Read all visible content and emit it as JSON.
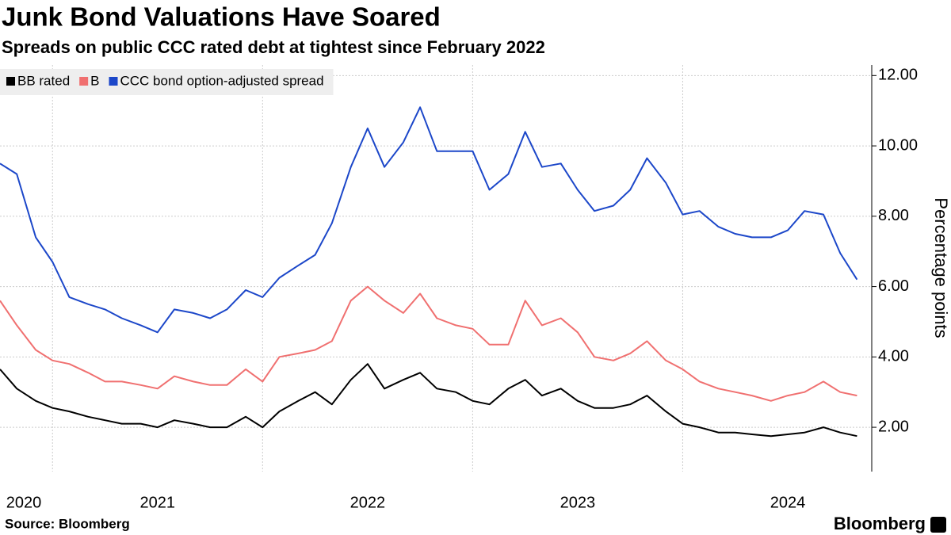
{
  "chart_data": {
    "type": "line",
    "title": "Junk Bond Valuations Have Soared",
    "subtitle": "Spreads on public CCC rated debt at tightest since February 2022",
    "y_label": "Percentage points",
    "source": "Source: Bloomberg",
    "logo": "Bloomberg",
    "legend": "upper left",
    "grid": true,
    "x": [
      2020.75,
      2020.83,
      2020.92,
      2021.0,
      2021.08,
      2021.17,
      2021.25,
      2021.33,
      2021.42,
      2021.5,
      2021.58,
      2021.67,
      2021.75,
      2021.83,
      2021.92,
      2022.0,
      2022.08,
      2022.17,
      2022.25,
      2022.33,
      2022.42,
      2022.5,
      2022.58,
      2022.67,
      2022.75,
      2022.83,
      2022.92,
      2023.0,
      2023.08,
      2023.17,
      2023.25,
      2023.33,
      2023.42,
      2023.5,
      2023.58,
      2023.67,
      2023.75,
      2023.83,
      2023.92,
      2024.0,
      2024.08,
      2024.17,
      2024.25,
      2024.33,
      2024.42,
      2024.5,
      2024.58,
      2024.67,
      2024.75,
      2024.83
    ],
    "xlim": [
      2020.75,
      2024.9
    ],
    "xticks": [
      2020,
      2021,
      2022,
      2023,
      2024
    ],
    "ylim": [
      0.74,
      12.3
    ],
    "yticks": [
      {
        "value": 2,
        "label": "2.00"
      },
      {
        "value": 4,
        "label": "4.00"
      },
      {
        "value": 6,
        "label": "6.00"
      },
      {
        "value": 8,
        "label": "8.00"
      },
      {
        "value": 10,
        "label": "10.00"
      },
      {
        "value": 12,
        "label": "12.00"
      }
    ],
    "series": [
      {
        "name": "BB rated",
        "color": "#000000",
        "values": [
          3.65,
          3.1,
          2.75,
          2.55,
          2.45,
          2.3,
          2.2,
          2.1,
          2.1,
          2.0,
          2.2,
          2.1,
          2.0,
          2.0,
          2.3,
          2.0,
          2.45,
          2.75,
          3.0,
          2.65,
          3.35,
          3.8,
          3.1,
          3.35,
          3.55,
          3.1,
          3.0,
          2.75,
          2.65,
          3.1,
          3.35,
          2.9,
          3.1,
          2.75,
          2.55,
          2.55,
          2.65,
          2.9,
          2.45,
          2.1,
          2.0,
          1.85,
          1.85,
          1.8,
          1.75,
          1.8,
          1.85,
          2.0,
          1.85,
          1.75
        ]
      },
      {
        "name": "B",
        "color": "#f07070",
        "values": [
          5.6,
          4.9,
          4.2,
          3.9,
          3.8,
          3.55,
          3.3,
          3.3,
          3.2,
          3.1,
          3.45,
          3.3,
          3.2,
          3.2,
          3.65,
          3.3,
          4.0,
          4.1,
          4.2,
          4.45,
          5.6,
          6.0,
          5.6,
          5.25,
          5.8,
          5.1,
          4.9,
          4.8,
          4.35,
          4.35,
          5.6,
          4.9,
          5.1,
          4.7,
          4.0,
          3.9,
          4.1,
          4.45,
          3.9,
          3.65,
          3.3,
          3.1,
          3.0,
          2.9,
          2.75,
          2.9,
          3.0,
          3.3,
          3.0,
          2.9
        ]
      },
      {
        "name": "CCC bond option-adjusted spread",
        "color": "#1c47c9",
        "values": [
          9.5,
          9.2,
          7.4,
          6.7,
          5.7,
          5.5,
          5.35,
          5.1,
          4.9,
          4.7,
          5.35,
          5.25,
          5.1,
          5.35,
          5.9,
          5.7,
          6.25,
          6.6,
          6.9,
          7.8,
          9.4,
          10.5,
          9.4,
          10.1,
          11.1,
          9.85,
          9.85,
          9.85,
          8.75,
          9.2,
          10.4,
          9.4,
          9.5,
          8.75,
          8.15,
          8.3,
          8.75,
          9.65,
          8.95,
          8.05,
          8.15,
          7.7,
          7.5,
          7.4,
          7.4,
          7.6,
          8.15,
          8.05,
          6.95,
          6.2
        ]
      }
    ]
  }
}
